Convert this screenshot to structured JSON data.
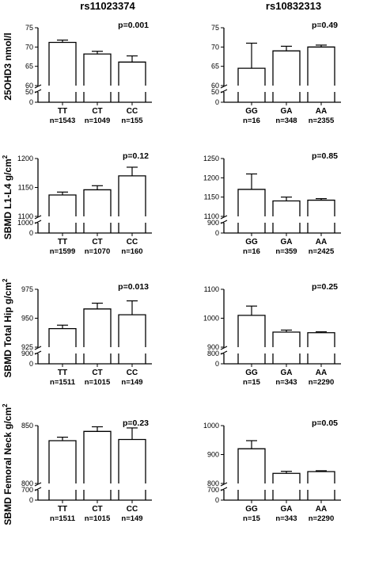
{
  "columns": [
    "rs11023374",
    "rs10832313"
  ],
  "chart_data": [
    {
      "type": "bar",
      "row": 0,
      "col": 0,
      "ylabel": "25OHD3 nmol/l",
      "ylabel_sup": "",
      "pvalue": "p=0.001",
      "categories": [
        "TT",
        "CT",
        "CC"
      ],
      "n_labels": [
        "n=1543",
        "n=1049",
        "n=155"
      ],
      "values": [
        71.2,
        68.2,
        66.1
      ],
      "errors": [
        0.6,
        0.7,
        1.6
      ],
      "ylim": [
        60,
        75
      ],
      "yticks": [
        60,
        65,
        70,
        75
      ],
      "lower_ylim": [
        0,
        50
      ],
      "lower_ticks": [
        0,
        50
      ],
      "grid": false
    },
    {
      "type": "bar",
      "row": 0,
      "col": 1,
      "ylabel": "",
      "ylabel_sup": "",
      "pvalue": "p=0.49",
      "categories": [
        "GG",
        "GA",
        "AA"
      ],
      "n_labels": [
        "n=16",
        "n=348",
        "n=2355"
      ],
      "values": [
        64.5,
        69.0,
        70.0
      ],
      "errors": [
        6.5,
        1.2,
        0.5
      ],
      "ylim": [
        60,
        75
      ],
      "yticks": [
        60,
        65,
        70,
        75
      ],
      "lower_ylim": [
        0,
        50
      ],
      "lower_ticks": [
        0,
        50
      ],
      "grid": false
    },
    {
      "type": "bar",
      "row": 1,
      "col": 0,
      "ylabel": "SBMD L1-L4 g/cm",
      "ylabel_sup": "2",
      "pvalue": "p=0.12",
      "categories": [
        "TT",
        "CT",
        "CC"
      ],
      "n_labels": [
        "n=1599",
        "n=1070",
        "n=160"
      ],
      "values": [
        1137,
        1146,
        1170
      ],
      "errors": [
        5,
        7,
        15
      ],
      "ylim": [
        1100,
        1200
      ],
      "yticks": [
        1100,
        1150,
        1200
      ],
      "lower_ylim": [
        0,
        1000
      ],
      "lower_ticks": [
        0,
        1000
      ],
      "grid": false
    },
    {
      "type": "bar",
      "row": 1,
      "col": 1,
      "ylabel": "",
      "ylabel_sup": "",
      "pvalue": "p=0.85",
      "categories": [
        "GG",
        "GA",
        "AA"
      ],
      "n_labels": [
        "n=16",
        "n=359",
        "n=2425"
      ],
      "values": [
        1170,
        1140,
        1142
      ],
      "errors": [
        40,
        10,
        4
      ],
      "ylim": [
        1100,
        1250
      ],
      "yticks": [
        1100,
        1150,
        1200,
        1250
      ],
      "lower_ylim": [
        0,
        900
      ],
      "lower_ticks": [
        0,
        900
      ],
      "grid": false
    },
    {
      "type": "bar",
      "row": 2,
      "col": 0,
      "ylabel": "SBMD Total Hip g/cm",
      "ylabel_sup": "2",
      "pvalue": "p=0.013",
      "categories": [
        "TT",
        "CT",
        "CC"
      ],
      "n_labels": [
        "n=1511",
        "n=1015",
        "n=149"
      ],
      "values": [
        941,
        958,
        953
      ],
      "errors": [
        3,
        5,
        12
      ],
      "ylim": [
        925,
        975
      ],
      "yticks": [
        925,
        950,
        975
      ],
      "lower_ylim": [
        0,
        900
      ],
      "lower_ticks": [
        0,
        900
      ],
      "grid": false
    },
    {
      "type": "bar",
      "row": 2,
      "col": 1,
      "ylabel": "",
      "ylabel_sup": "",
      "pvalue": "p=0.25",
      "categories": [
        "GG",
        "GA",
        "AA"
      ],
      "n_labels": [
        "n=15",
        "n=343",
        "n=2290"
      ],
      "values": [
        1010,
        952,
        950
      ],
      "errors": [
        32,
        7,
        3
      ],
      "ylim": [
        900,
        1100
      ],
      "yticks": [
        900,
        1000,
        1100
      ],
      "lower_ylim": [
        0,
        800
      ],
      "lower_ticks": [
        0,
        800
      ],
      "grid": false
    },
    {
      "type": "bar",
      "row": 3,
      "col": 0,
      "ylabel": "SBMD Femoral Neck g/cm",
      "ylabel_sup": "2",
      "pvalue": "p=0.23",
      "categories": [
        "TT",
        "CT",
        "CC"
      ],
      "n_labels": [
        "n=1511",
        "n=1015",
        "n=149"
      ],
      "values": [
        837,
        845,
        838
      ],
      "errors": [
        3,
        4,
        10
      ],
      "ylim": [
        800,
        850
      ],
      "yticks": [
        800,
        850
      ],
      "lower_ylim": [
        0,
        700
      ],
      "lower_ticks": [
        0,
        700
      ],
      "grid": false
    },
    {
      "type": "bar",
      "row": 3,
      "col": 1,
      "ylabel": "",
      "ylabel_sup": "",
      "pvalue": "p=0.05",
      "categories": [
        "GG",
        "GA",
        "AA"
      ],
      "n_labels": [
        "n=15",
        "n=343",
        "n=2290"
      ],
      "values": [
        920,
        835,
        841
      ],
      "errors": [
        28,
        7,
        3
      ],
      "ylim": [
        800,
        1000
      ],
      "yticks": [
        800,
        900,
        1000
      ],
      "lower_ylim": [
        0,
        700
      ],
      "lower_ticks": [
        0,
        700
      ],
      "grid": false
    }
  ]
}
